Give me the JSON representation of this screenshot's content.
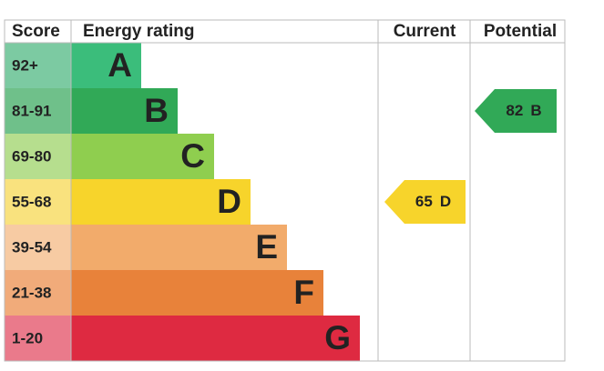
{
  "chart_data": {
    "type": "epc",
    "headers": {
      "score": "Score",
      "rating": "Energy rating",
      "current": "Current",
      "potential": "Potential"
    },
    "bands": [
      {
        "score": "92+",
        "letter": "A",
        "color": "#3bbd7b",
        "score_color": "#7ccaa2"
      },
      {
        "score": "81-91",
        "letter": "B",
        "color": "#31a957",
        "score_color": "#6fc08a"
      },
      {
        "score": "69-80",
        "letter": "C",
        "color": "#8fce4f",
        "score_color": "#b6de8e"
      },
      {
        "score": "55-68",
        "letter": "D",
        "color": "#f7d42b",
        "score_color": "#f9e27e"
      },
      {
        "score": "39-54",
        "letter": "E",
        "color": "#f2ab6b",
        "score_color": "#f7cba3"
      },
      {
        "score": "21-38",
        "letter": "F",
        "color": "#e8823a",
        "score_color": "#f1ab7a"
      },
      {
        "score": "1-20",
        "letter": "G",
        "color": "#de2a41",
        "score_color": "#ea7a8b"
      }
    ],
    "current": {
      "value": 65,
      "letter": "D",
      "color": "#f7d42b"
    },
    "potential": {
      "value": 82,
      "letter": "B",
      "color": "#31a957"
    }
  }
}
